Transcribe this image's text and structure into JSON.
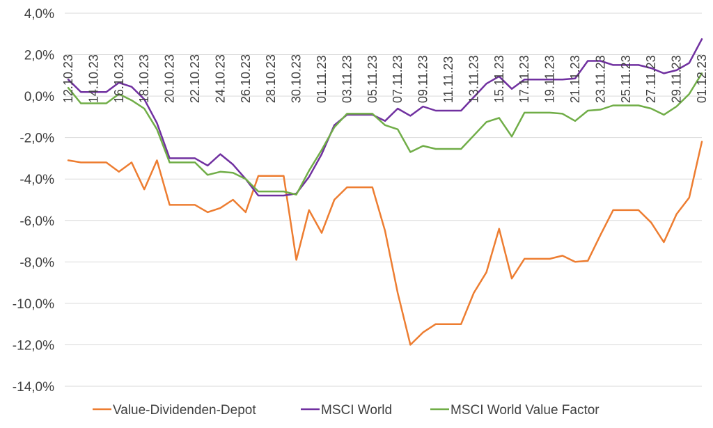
{
  "chart_data": {
    "type": "line",
    "title": "",
    "xlabel": "",
    "ylabel": "",
    "ylim": [
      -14,
      4
    ],
    "y_ticks": [
      "4,0%",
      "2,0%",
      "0,0%",
      "-2,0%",
      "-4,0%",
      "-6,0%",
      "-8,0%",
      "-10,0%",
      "-12,0%",
      "-14,0%"
    ],
    "y_tick_values": [
      4,
      2,
      0,
      -2,
      -4,
      -6,
      -8,
      -10,
      -12,
      -14
    ],
    "x_tick_labels": [
      "12.10.23",
      "14.10.23",
      "16.10.23",
      "18.10.23",
      "20.10.23",
      "22.10.23",
      "24.10.23",
      "26.10.23",
      "28.10.23",
      "30.10.23",
      "01.11.23",
      "03.11.23",
      "05.11.23",
      "07.11.23",
      "09.11.23",
      "11.11.23",
      "13.11.23",
      "15.11.23",
      "17.11.23",
      "19.11.23",
      "21.11.23",
      "23.11.23",
      "25.11.23",
      "27.11.23",
      "29.11.23",
      "01.12.23"
    ],
    "grid": true,
    "legend_position": "bottom",
    "series": [
      {
        "name": "Value-Dividenden-Depot",
        "color": "#ED7D31",
        "values": [
          -3.1,
          -3.2,
          -3.2,
          -3.2,
          -3.65,
          -3.2,
          -4.5,
          -3.1,
          -5.25,
          -5.25,
          -5.25,
          -5.6,
          -5.4,
          -5.0,
          -5.6,
          -3.85,
          -3.85,
          -3.85,
          -7.9,
          -5.5,
          -6.6,
          -5.0,
          -4.4,
          -4.4,
          -4.4,
          -6.5,
          -9.5,
          -12.0,
          -11.4,
          -11.0,
          -11.0,
          -11.0,
          -9.5,
          -8.5,
          -6.4,
          -8.8,
          -7.85,
          -7.85,
          -7.85,
          -7.7,
          -8.0,
          -7.95,
          -6.7,
          -5.5,
          -5.5,
          -5.5,
          -6.1,
          -7.05,
          -5.7,
          -4.9,
          -2.2
        ]
      },
      {
        "name": "MSCI World",
        "color": "#7030A0",
        "values": [
          0.8,
          0.2,
          0.2,
          0.2,
          0.65,
          0.45,
          -0.15,
          -1.3,
          -3.0,
          -3.0,
          -3.0,
          -3.35,
          -2.8,
          -3.3,
          -4.0,
          -4.8,
          -4.8,
          -4.8,
          -4.7,
          -3.9,
          -2.8,
          -1.4,
          -0.9,
          -0.9,
          -0.9,
          -1.2,
          -0.6,
          -0.95,
          -0.5,
          -0.7,
          -0.7,
          -0.7,
          -0.05,
          0.6,
          0.95,
          0.35,
          0.8,
          0.8,
          0.8,
          0.8,
          0.85,
          1.7,
          1.7,
          1.5,
          1.5,
          1.5,
          1.35,
          1.1,
          1.25,
          1.6,
          2.75
        ]
      },
      {
        "name": "MSCI World Value Factor",
        "color": "#70AD47",
        "values": [
          0.4,
          -0.35,
          -0.35,
          -0.35,
          0.1,
          -0.2,
          -0.6,
          -1.6,
          -3.2,
          -3.2,
          -3.2,
          -3.8,
          -3.65,
          -3.7,
          -4.0,
          -4.6,
          -4.6,
          -4.6,
          -4.75,
          -3.6,
          -2.6,
          -1.5,
          -0.85,
          -0.85,
          -0.85,
          -1.4,
          -1.6,
          -2.7,
          -2.4,
          -2.55,
          -2.55,
          -2.55,
          -1.9,
          -1.25,
          -1.05,
          -1.95,
          -0.8,
          -0.8,
          -0.8,
          -0.85,
          -1.2,
          -0.7,
          -0.65,
          -0.45,
          -0.45,
          -0.45,
          -0.6,
          -0.9,
          -0.5,
          0.1,
          1.1
        ]
      }
    ]
  }
}
